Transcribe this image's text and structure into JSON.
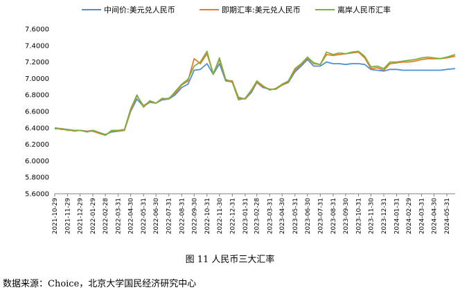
{
  "caption": "图 11  人民币三大汇率",
  "source": "数据来源：Choice，北京大学国民经济研究中心",
  "chart_data": {
    "type": "line",
    "title": "",
    "xlabel": "",
    "ylabel": "",
    "ylim": [
      5.6,
      7.6
    ],
    "yticks": [
      "7.6000",
      "7.4000",
      "7.2000",
      "7.0000",
      "6.8000",
      "6.6000",
      "6.4000",
      "6.2000",
      "6.0000",
      "5.8000",
      "5.6000"
    ],
    "xticks": [
      "2021-10-29",
      "2021-11-29",
      "2021-12-29",
      "2022-01-29",
      "2022-02-28",
      "2022-03-31",
      "2022-04-30",
      "2022-05-31",
      "2022-06-30",
      "2022-07-31",
      "2022-08-31",
      "2022-09-30",
      "2022-10-31",
      "2022-11-30",
      "2022-12-31",
      "2023-01-31",
      "2023-02-28",
      "2023-03-31",
      "2023-04-30",
      "2023-05-31",
      "2023-06-30",
      "2023-07-31",
      "2023-08-31",
      "2023-09-30",
      "2023-10-31",
      "2023-11-30",
      "2023-12-31",
      "2024-01-31",
      "2024-02-29",
      "2024-03-31",
      "2024-04-30",
      "2024-05-31"
    ],
    "grid": false,
    "legend_position": "top",
    "series": [
      {
        "name": "中间价:美元兑人民币",
        "color": "#4E8FD0",
        "values": [
          [
            "2021-10-29",
            6.39
          ],
          [
            "2021-11-15",
            6.39
          ],
          [
            "2021-11-29",
            6.38
          ],
          [
            "2021-12-15",
            6.37
          ],
          [
            "2021-12-29",
            6.37
          ],
          [
            "2022-01-15",
            6.36
          ],
          [
            "2022-01-29",
            6.37
          ],
          [
            "2022-02-15",
            6.34
          ],
          [
            "2022-02-28",
            6.32
          ],
          [
            "2022-03-15",
            6.35
          ],
          [
            "2022-03-31",
            6.36
          ],
          [
            "2022-04-15",
            6.37
          ],
          [
            "2022-04-30",
            6.6
          ],
          [
            "2022-05-15",
            6.75
          ],
          [
            "2022-05-31",
            6.66
          ],
          [
            "2022-06-15",
            6.71
          ],
          [
            "2022-06-30",
            6.7
          ],
          [
            "2022-07-15",
            6.74
          ],
          [
            "2022-07-31",
            6.75
          ],
          [
            "2022-08-15",
            6.8
          ],
          [
            "2022-08-31",
            6.89
          ],
          [
            "2022-09-15",
            6.93
          ],
          [
            "2022-09-30",
            7.1
          ],
          [
            "2022-10-15",
            7.11
          ],
          [
            "2022-10-31",
            7.18
          ],
          [
            "2022-11-15",
            7.05
          ],
          [
            "2022-11-30",
            7.18
          ],
          [
            "2022-12-15",
            6.97
          ],
          [
            "2022-12-31",
            6.96
          ],
          [
            "2023-01-15",
            6.77
          ],
          [
            "2023-01-31",
            6.75
          ],
          [
            "2023-02-15",
            6.83
          ],
          [
            "2023-02-28",
            6.95
          ],
          [
            "2023-03-15",
            6.89
          ],
          [
            "2023-03-31",
            6.87
          ],
          [
            "2023-04-15",
            6.87
          ],
          [
            "2023-04-30",
            6.92
          ],
          [
            "2023-05-15",
            6.95
          ],
          [
            "2023-05-31",
            7.08
          ],
          [
            "2023-06-15",
            7.15
          ],
          [
            "2023-06-30",
            7.23
          ],
          [
            "2023-07-15",
            7.15
          ],
          [
            "2023-07-31",
            7.15
          ],
          [
            "2023-08-15",
            7.2
          ],
          [
            "2023-08-31",
            7.18
          ],
          [
            "2023-09-15",
            7.18
          ],
          [
            "2023-09-30",
            7.17
          ],
          [
            "2023-10-15",
            7.18
          ],
          [
            "2023-10-31",
            7.18
          ],
          [
            "2023-11-15",
            7.17
          ],
          [
            "2023-11-30",
            7.11
          ],
          [
            "2023-12-15",
            7.1
          ],
          [
            "2023-12-31",
            7.09
          ],
          [
            "2024-01-15",
            7.11
          ],
          [
            "2024-01-31",
            7.11
          ],
          [
            "2024-02-15",
            7.1
          ],
          [
            "2024-02-29",
            7.1
          ],
          [
            "2024-03-15",
            7.1
          ],
          [
            "2024-03-31",
            7.1
          ],
          [
            "2024-04-15",
            7.1
          ],
          [
            "2024-04-30",
            7.1
          ],
          [
            "2024-05-15",
            7.1
          ],
          [
            "2024-05-31",
            7.11
          ],
          [
            "2024-06-20",
            7.12
          ]
        ]
      },
      {
        "name": "即期汇率:美元兑人民币",
        "color": "#E8762C",
        "values": [
          [
            "2021-10-29",
            6.4
          ],
          [
            "2021-11-15",
            6.39
          ],
          [
            "2021-11-29",
            6.37
          ],
          [
            "2021-12-15",
            6.37
          ],
          [
            "2021-12-29",
            6.37
          ],
          [
            "2022-01-15",
            6.36
          ],
          [
            "2022-01-29",
            6.36
          ],
          [
            "2022-02-15",
            6.33
          ],
          [
            "2022-02-28",
            6.31
          ],
          [
            "2022-03-15",
            6.36
          ],
          [
            "2022-03-31",
            6.36
          ],
          [
            "2022-04-15",
            6.37
          ],
          [
            "2022-04-30",
            6.61
          ],
          [
            "2022-05-15",
            6.79
          ],
          [
            "2022-05-31",
            6.67
          ],
          [
            "2022-06-15",
            6.72
          ],
          [
            "2022-06-30",
            6.7
          ],
          [
            "2022-07-15",
            6.75
          ],
          [
            "2022-07-31",
            6.76
          ],
          [
            "2022-08-15",
            6.82
          ],
          [
            "2022-08-31",
            6.92
          ],
          [
            "2022-09-15",
            6.97
          ],
          [
            "2022-09-30",
            7.24
          ],
          [
            "2022-10-15",
            7.18
          ],
          [
            "2022-10-31",
            7.3
          ],
          [
            "2022-11-15",
            7.06
          ],
          [
            "2022-11-30",
            7.23
          ],
          [
            "2022-12-15",
            6.98
          ],
          [
            "2022-12-31",
            6.97
          ],
          [
            "2023-01-15",
            6.76
          ],
          [
            "2023-01-31",
            6.75
          ],
          [
            "2023-02-15",
            6.85
          ],
          [
            "2023-02-28",
            6.95
          ],
          [
            "2023-03-15",
            6.9
          ],
          [
            "2023-03-31",
            6.87
          ],
          [
            "2023-04-15",
            6.87
          ],
          [
            "2023-04-30",
            6.92
          ],
          [
            "2023-05-15",
            6.96
          ],
          [
            "2023-05-31",
            7.1
          ],
          [
            "2023-06-15",
            7.17
          ],
          [
            "2023-06-30",
            7.25
          ],
          [
            "2023-07-15",
            7.18
          ],
          [
            "2023-07-31",
            7.17
          ],
          [
            "2023-08-15",
            7.29
          ],
          [
            "2023-08-31",
            7.28
          ],
          [
            "2023-09-15",
            7.29
          ],
          [
            "2023-09-30",
            7.3
          ],
          [
            "2023-10-15",
            7.31
          ],
          [
            "2023-10-31",
            7.32
          ],
          [
            "2023-11-15",
            7.25
          ],
          [
            "2023-11-30",
            7.12
          ],
          [
            "2023-12-15",
            7.13
          ],
          [
            "2023-12-31",
            7.1
          ],
          [
            "2024-01-15",
            7.18
          ],
          [
            "2024-01-31",
            7.19
          ],
          [
            "2024-02-15",
            7.2
          ],
          [
            "2024-02-29",
            7.2
          ],
          [
            "2024-03-15",
            7.21
          ],
          [
            "2024-03-31",
            7.23
          ],
          [
            "2024-04-15",
            7.24
          ],
          [
            "2024-04-30",
            7.24
          ],
          [
            "2024-05-15",
            7.24
          ],
          [
            "2024-05-31",
            7.25
          ],
          [
            "2024-06-20",
            7.27
          ]
        ]
      },
      {
        "name": "离岸人民币汇率",
        "color": "#7DB23A",
        "values": [
          [
            "2021-10-29",
            6.4
          ],
          [
            "2021-11-15",
            6.38
          ],
          [
            "2021-11-29",
            6.38
          ],
          [
            "2021-12-15",
            6.36
          ],
          [
            "2021-12-29",
            6.37
          ],
          [
            "2022-01-15",
            6.35
          ],
          [
            "2022-01-29",
            6.37
          ],
          [
            "2022-02-15",
            6.34
          ],
          [
            "2022-02-28",
            6.31
          ],
          [
            "2022-03-15",
            6.37
          ],
          [
            "2022-03-31",
            6.37
          ],
          [
            "2022-04-15",
            6.38
          ],
          [
            "2022-04-30",
            6.63
          ],
          [
            "2022-05-15",
            6.8
          ],
          [
            "2022-05-31",
            6.65
          ],
          [
            "2022-06-15",
            6.73
          ],
          [
            "2022-06-30",
            6.7
          ],
          [
            "2022-07-15",
            6.76
          ],
          [
            "2022-07-31",
            6.75
          ],
          [
            "2022-08-15",
            6.84
          ],
          [
            "2022-08-31",
            6.93
          ],
          [
            "2022-09-15",
            6.99
          ],
          [
            "2022-09-30",
            7.15
          ],
          [
            "2022-10-15",
            7.2
          ],
          [
            "2022-10-31",
            7.33
          ],
          [
            "2022-11-15",
            7.05
          ],
          [
            "2022-11-30",
            7.25
          ],
          [
            "2022-12-15",
            6.99
          ],
          [
            "2022-12-31",
            6.95
          ],
          [
            "2023-01-15",
            6.74
          ],
          [
            "2023-01-31",
            6.76
          ],
          [
            "2023-02-15",
            6.86
          ],
          [
            "2023-02-28",
            6.97
          ],
          [
            "2023-03-15",
            6.91
          ],
          [
            "2023-03-31",
            6.86
          ],
          [
            "2023-04-15",
            6.88
          ],
          [
            "2023-04-30",
            6.93
          ],
          [
            "2023-05-15",
            6.97
          ],
          [
            "2023-05-31",
            7.12
          ],
          [
            "2023-06-15",
            7.18
          ],
          [
            "2023-06-30",
            7.26
          ],
          [
            "2023-07-15",
            7.19
          ],
          [
            "2023-07-31",
            7.17
          ],
          [
            "2023-08-15",
            7.32
          ],
          [
            "2023-08-31",
            7.29
          ],
          [
            "2023-09-15",
            7.31
          ],
          [
            "2023-09-30",
            7.3
          ],
          [
            "2023-10-15",
            7.32
          ],
          [
            "2023-10-31",
            7.33
          ],
          [
            "2023-11-15",
            7.27
          ],
          [
            "2023-11-30",
            7.14
          ],
          [
            "2023-12-15",
            7.15
          ],
          [
            "2023-12-31",
            7.12
          ],
          [
            "2024-01-15",
            7.2
          ],
          [
            "2024-01-31",
            7.2
          ],
          [
            "2024-02-15",
            7.21
          ],
          [
            "2024-02-29",
            7.22
          ],
          [
            "2024-03-15",
            7.23
          ],
          [
            "2024-03-31",
            7.25
          ],
          [
            "2024-04-15",
            7.26
          ],
          [
            "2024-04-30",
            7.25
          ],
          [
            "2024-05-15",
            7.24
          ],
          [
            "2024-05-31",
            7.26
          ],
          [
            "2024-06-20",
            7.29
          ]
        ]
      }
    ]
  }
}
